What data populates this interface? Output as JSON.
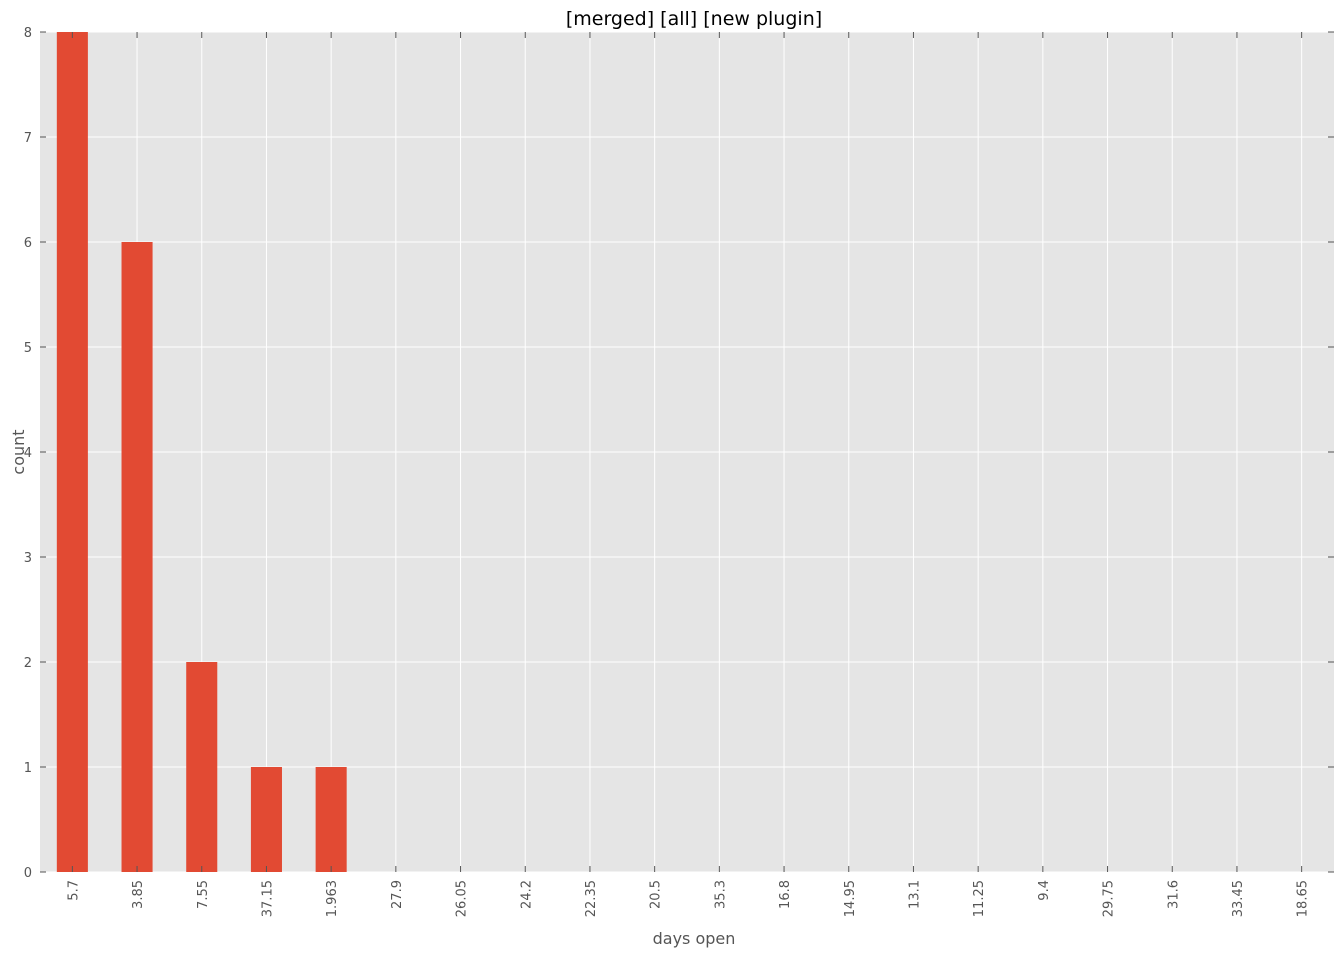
{
  "chart_data": {
    "type": "bar",
    "title": "[merged] [all] [new plugin]",
    "xlabel": "days open",
    "ylabel": "count",
    "categories": [
      "5.7",
      "3.85",
      "7.55",
      "37.15",
      "1.963",
      "27.9",
      "26.05",
      "24.2",
      "22.35",
      "20.5",
      "35.3",
      "16.8",
      "14.95",
      "13.1",
      "11.25",
      "9.4",
      "29.75",
      "31.6",
      "33.45",
      "18.65"
    ],
    "values": [
      8,
      6,
      2,
      1,
      1,
      0,
      0,
      0,
      0,
      0,
      0,
      0,
      0,
      0,
      0,
      0,
      0,
      0,
      0,
      0
    ],
    "ylim": [
      0,
      8
    ],
    "yticks": [
      0,
      1,
      2,
      3,
      4,
      5,
      6,
      7,
      8
    ],
    "grid": true,
    "colors": {
      "bar": "#E24A33",
      "plot_background": "#E5E5E5",
      "grid": "#FFFFFF",
      "tick_text": "#555555"
    }
  }
}
